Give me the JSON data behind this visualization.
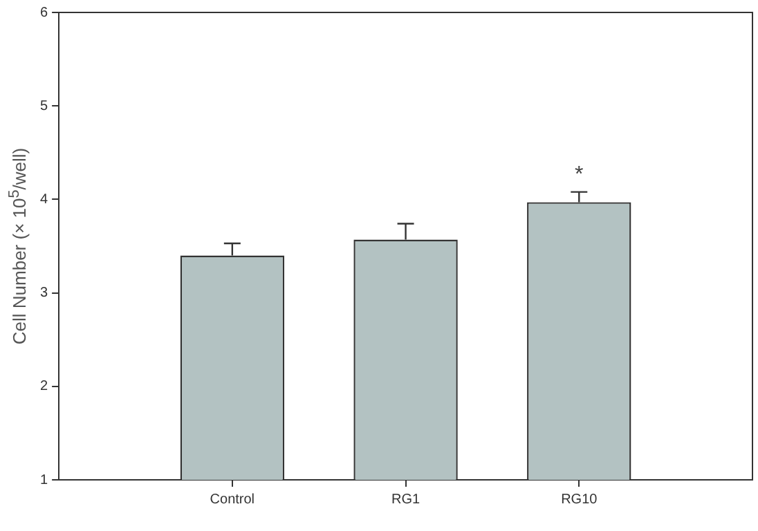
{
  "chart_data": {
    "type": "bar",
    "ylabel": "Cell Number (× 10$^{5}$/well)",
    "categories": [
      "Control",
      "RG1",
      "RG10"
    ],
    "values": [
      3.4,
      3.57,
      3.97
    ],
    "errors": [
      [
        3.4,
        3.53
      ],
      [
        3.57,
        3.74
      ],
      [
        3.97,
        4.08
      ]
    ],
    "color": "#b3c2c2",
    "ylim": [
      1,
      6
    ],
    "yticks": [
      1,
      2,
      3,
      4,
      5,
      6
    ],
    "grid": false,
    "legend": false,
    "annotations": [
      {
        "text": "*",
        "x": "RG10",
        "y": 4.08
      }
    ]
  }
}
